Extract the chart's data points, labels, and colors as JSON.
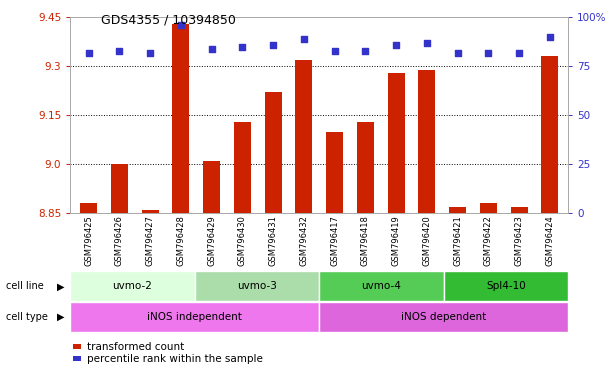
{
  "title": "GDS4355 / 10394850",
  "samples": [
    "GSM796425",
    "GSM796426",
    "GSM796427",
    "GSM796428",
    "GSM796429",
    "GSM796430",
    "GSM796431",
    "GSM796432",
    "GSM796417",
    "GSM796418",
    "GSM796419",
    "GSM796420",
    "GSM796421",
    "GSM796422",
    "GSM796423",
    "GSM796424"
  ],
  "bar_values": [
    8.88,
    9.0,
    8.86,
    9.43,
    9.01,
    9.13,
    9.22,
    9.32,
    9.1,
    9.13,
    9.28,
    9.29,
    8.87,
    8.88,
    8.87,
    9.33
  ],
  "percentile_values": [
    82,
    83,
    82,
    96,
    84,
    85,
    86,
    89,
    83,
    83,
    86,
    87,
    82,
    82,
    82,
    90
  ],
  "bar_bottom": 8.85,
  "ylim_left": [
    8.85,
    9.45
  ],
  "ylim_right": [
    0,
    100
  ],
  "yticks_left": [
    8.85,
    9.0,
    9.15,
    9.3,
    9.45
  ],
  "yticks_right": [
    0,
    25,
    50,
    75,
    100
  ],
  "bar_color": "#cc2200",
  "dot_color": "#3333cc",
  "cell_line_groups": [
    {
      "label": "uvmo-2",
      "start": 0,
      "end": 3,
      "color": "#ddffdd"
    },
    {
      "label": "uvmo-3",
      "start": 4,
      "end": 7,
      "color": "#aaddaa"
    },
    {
      "label": "uvmo-4",
      "start": 8,
      "end": 11,
      "color": "#55cc55"
    },
    {
      "label": "Spl4-10",
      "start": 12,
      "end": 15,
      "color": "#33bb33"
    }
  ],
  "cell_type_groups": [
    {
      "label": "iNOS independent",
      "start": 0,
      "end": 7,
      "color": "#ee77ee"
    },
    {
      "label": "iNOS dependent",
      "start": 8,
      "end": 15,
      "color": "#dd66dd"
    }
  ],
  "legend_items": [
    {
      "label": "transformed count",
      "color": "#cc2200"
    },
    {
      "label": "percentile rank within the sample",
      "color": "#3333cc"
    }
  ],
  "axis_color_left": "#cc2200",
  "axis_color_right": "#3333cc",
  "label_bg_color": "#cccccc",
  "cell_line_label": "cell line",
  "cell_type_label": "cell type"
}
